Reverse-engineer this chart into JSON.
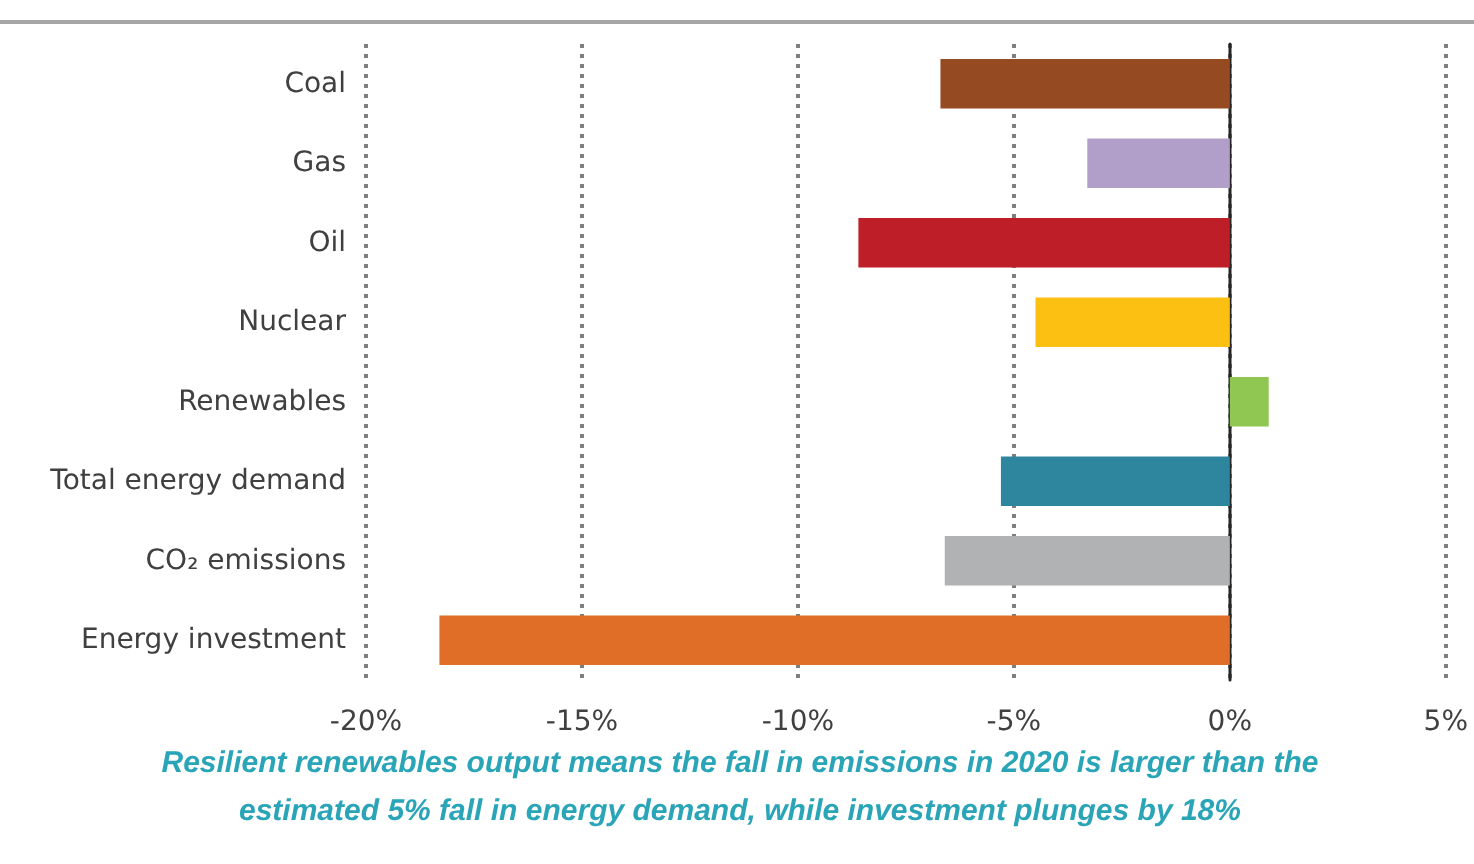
{
  "chart_data": {
    "type": "bar",
    "orientation": "horizontal",
    "categories": [
      "Coal",
      "Gas",
      "Oil",
      "Nuclear",
      "Renewables",
      "Total energy demand",
      "CO₂ emissions",
      "Energy investment"
    ],
    "values": [
      -6.7,
      -3.3,
      -8.6,
      -4.5,
      0.9,
      -5.3,
      -6.6,
      -18.3
    ],
    "colors": [
      "#954a22",
      "#b19fc9",
      "#be1e28",
      "#fcc012",
      "#8fc752",
      "#2e869e",
      "#b1b2b4",
      "#e06e27"
    ],
    "xlim": [
      -20,
      5
    ],
    "xticks": [
      {
        "value": -20,
        "label": "-20%"
      },
      {
        "value": -15,
        "label": "-15%"
      },
      {
        "value": -10,
        "label": "-10%"
      },
      {
        "value": -5,
        "label": "-5%"
      },
      {
        "value": 0,
        "label": "0%"
      },
      {
        "value": 5,
        "label": "5%"
      }
    ],
    "grid": "x",
    "annotations": [
      "Resilient renewables output means the fall in emissions in 2020 is larger than the estimated 5% fall in energy demand, while investment plunges by 18%"
    ]
  }
}
